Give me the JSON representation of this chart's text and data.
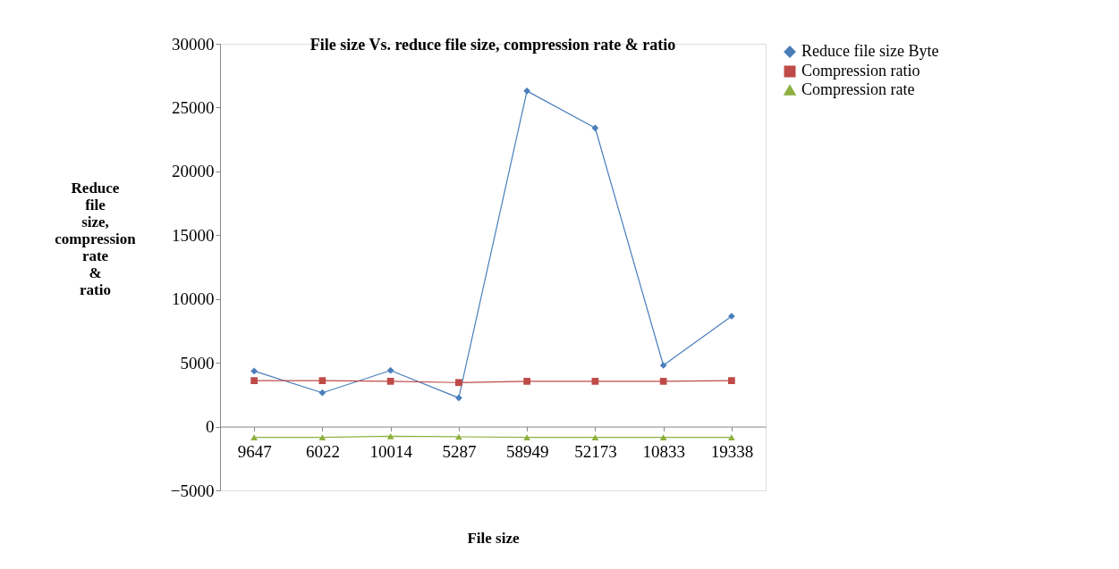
{
  "chart_data": {
    "type": "line",
    "title": "File size Vs. reduce file size, compression rate & ratio",
    "xlabel": "File size",
    "ylabel": "Reduce file size, compression rate & ratio",
    "categories": [
      "9647",
      "6022",
      "10014",
      "5287",
      "58949",
      "52173",
      "10833",
      "19338"
    ],
    "series": [
      {
        "name": "Reduce file size Byte",
        "color": "#4a7ebb",
        "marker": "diamond",
        "values": [
          4350,
          2650,
          4400,
          2250,
          26300,
          23400,
          4800,
          8650
        ]
      },
      {
        "name": "Compression ratio",
        "color": "#be4b48",
        "marker": "square",
        "values": [
          3600,
          3600,
          3550,
          3450,
          3550,
          3550,
          3550,
          3600
        ]
      },
      {
        "name": "Compression rate",
        "color": "#8db03f",
        "marker": "triangle",
        "values": [
          -850,
          -850,
          -750,
          -800,
          -850,
          -850,
          -850,
          -850
        ]
      }
    ],
    "ylim": [
      -5000,
      30000
    ],
    "yticks": [
      -5000,
      0,
      5000,
      10000,
      15000,
      20000,
      25000,
      30000
    ],
    "grid": false,
    "legend": "right"
  }
}
